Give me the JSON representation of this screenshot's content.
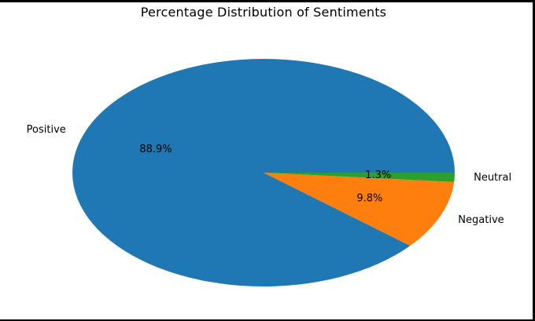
{
  "chart_data": {
    "type": "pie",
    "title": "Percentage Distribution of Sentiments",
    "start_angle": 0,
    "direction": "counterclockwise",
    "slices": [
      {
        "label": "Positive",
        "value": 88.9,
        "pct_label": "88.9%",
        "color": "#1f77b4"
      },
      {
        "label": "Negative",
        "value": 9.8,
        "pct_label": "9.8%",
        "color": "#ff7f0e"
      },
      {
        "label": "Neutral",
        "value": 1.3,
        "pct_label": "1.3%",
        "color": "#2ca02c"
      }
    ]
  }
}
